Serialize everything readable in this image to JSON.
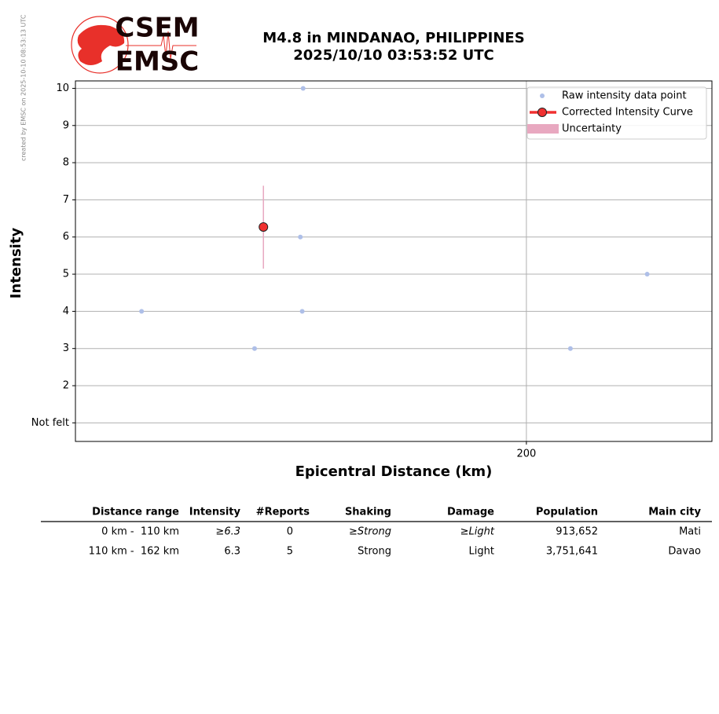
{
  "watermark": "created by EMSC on 2025-10-10 08:53:13 UTC",
  "logo": {
    "top": "CSEM",
    "bottom": "EMSC"
  },
  "chart_data": {
    "type": "scatter",
    "title": "M4.8 in MINDANAO, PHILIPPINES",
    "subtitle": "2025/10/10 03:53:52 UTC",
    "x_label": "Epicentral Distance (km)",
    "y_label": "Intensity",
    "x_log": true,
    "xlim": [
      100,
      266
    ],
    "xticks": [
      200
    ],
    "ylim": [
      0.5,
      10.2
    ],
    "yticks": [
      {
        "value": 1,
        "label": "Not felt"
      },
      2,
      3,
      4,
      5,
      6,
      7,
      8,
      9,
      10
    ],
    "grid": true,
    "legend": "upper right",
    "series": [
      {
        "name": "Raw intensity data point",
        "color": "#aebfe8",
        "x": [
          110.7,
          131.7,
          141.3,
          141.7,
          141.9,
          214,
          240.8
        ],
        "values": [
          4,
          3,
          6,
          4,
          10,
          3,
          5
        ]
      },
      {
        "name": "Corrected Intensity Curve",
        "color": "#f03030",
        "x": [
          133.5
        ],
        "values": [
          6.27
        ]
      },
      {
        "name": "Uncertainty",
        "color": "#e8a8c0",
        "x": [
          133.5
        ],
        "low": [
          5.15
        ],
        "high": [
          7.38
        ]
      }
    ]
  },
  "table": {
    "header": [
      "Distance range",
      "Intensity",
      "#Reports",
      "Shaking",
      "Damage",
      "Population",
      "Main city"
    ],
    "rows": [
      [
        "0 km -  110 km",
        "≥6.3",
        "0",
        "≥Strong",
        "≥Light",
        "913,652",
        "Mati"
      ],
      [
        "110 km -  162 km",
        "6.3",
        "5",
        "Strong",
        "Light",
        "3,751,641",
        "Davao"
      ]
    ]
  }
}
